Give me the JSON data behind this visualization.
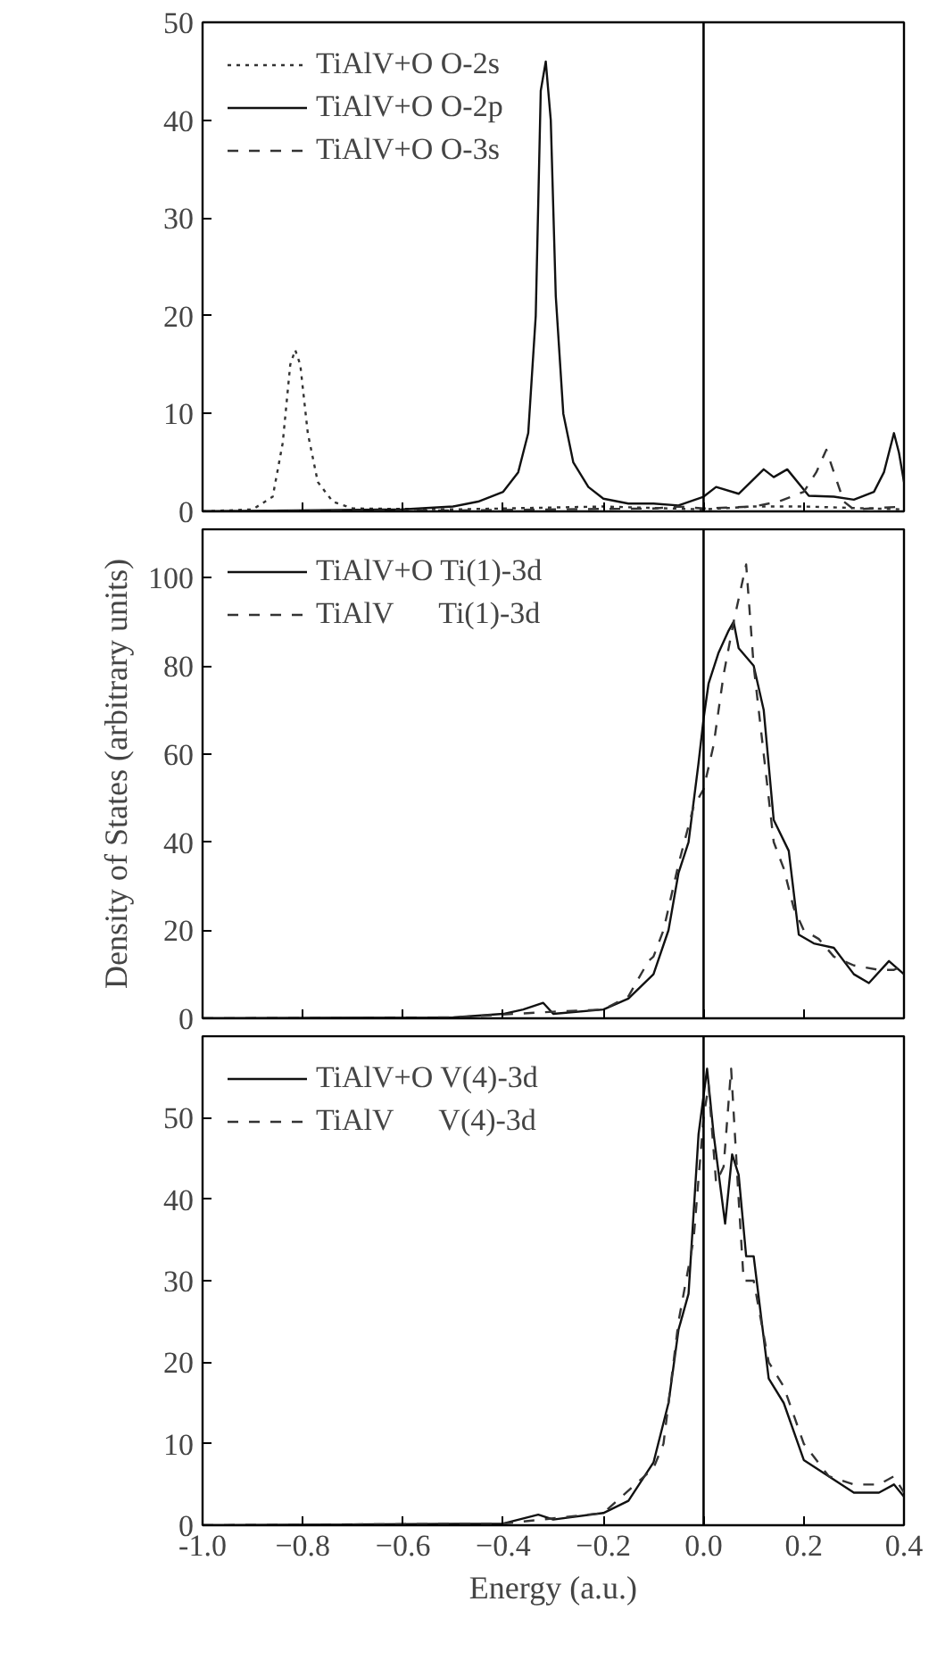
{
  "chart_data": [
    {
      "type": "line",
      "xlim": [
        -1.0,
        0.4
      ],
      "xticks": [
        -1.0,
        -0.8,
        -0.6,
        -0.4,
        -0.2,
        0.0,
        0.2,
        0.4
      ],
      "ylim": [
        0,
        50
      ],
      "yticks": [
        0,
        10,
        20,
        30,
        40,
        50
      ],
      "tick_labels": "y",
      "legend": "top left",
      "grid": false,
      "ref_lines": [
        {
          "axis": "x",
          "value": 0,
          "color": "#000000",
          "line_style": "solid"
        }
      ],
      "series": [
        {
          "name": "TiAlV+O O-2s",
          "color": "#333333",
          "line_style": "dotted",
          "x": [
            -1.0,
            -0.9,
            -0.86,
            -0.84,
            -0.825,
            -0.815,
            -0.805,
            -0.79,
            -0.77,
            -0.74,
            -0.7,
            -0.5,
            -0.2,
            0.0,
            0.1,
            0.2,
            0.4
          ],
          "values": [
            0,
            0.2,
            1.5,
            7,
            15,
            16.5,
            15,
            8,
            3,
            1,
            0.3,
            0.2,
            0.5,
            0.2,
            0.5,
            0.5,
            0.2
          ]
        },
        {
          "name": "TiAlV+O O-2p",
          "color": "#111111",
          "line_style": "solid",
          "x": [
            -1.0,
            -0.6,
            -0.5,
            -0.45,
            -0.4,
            -0.37,
            -0.35,
            -0.335,
            -0.325,
            -0.315,
            -0.305,
            -0.295,
            -0.28,
            -0.26,
            -0.23,
            -0.2,
            -0.15,
            -0.1,
            -0.05,
            0.0,
            0.025,
            0.07,
            0.12,
            0.14,
            0.167,
            0.21,
            0.26,
            0.3,
            0.34,
            0.36,
            0.38,
            0.39,
            0.4
          ],
          "values": [
            0,
            0.2,
            0.5,
            1,
            2,
            4,
            8,
            20,
            43,
            46,
            40,
            22,
            10,
            5,
            2.5,
            1.3,
            0.8,
            0.8,
            0.6,
            1.5,
            2.5,
            1.8,
            4.3,
            3.5,
            4.3,
            1.6,
            1.5,
            1.2,
            2,
            4,
            8,
            6,
            3
          ]
        },
        {
          "name": "TiAlV+O O-3s",
          "color": "#333333",
          "line_style": "dashed",
          "x": [
            -1.0,
            -0.5,
            -0.1,
            -0.05,
            0.0,
            0.1,
            0.15,
            0.2,
            0.225,
            0.245,
            0.26,
            0.28,
            0.3,
            0.4
          ],
          "values": [
            0,
            0.1,
            0.3,
            0.5,
            0.3,
            0.5,
            1,
            2,
            4,
            6.3,
            4,
            1,
            0.2,
            0.5
          ]
        }
      ]
    },
    {
      "type": "line",
      "xlim": [
        -1.0,
        0.4
      ],
      "xticks": [
        -1.0,
        -0.8,
        -0.6,
        -0.4,
        -0.2,
        0.0,
        0.2,
        0.4
      ],
      "ylim": [
        0,
        111
      ],
      "yticks": [
        0,
        20,
        40,
        60,
        80,
        100
      ],
      "tick_labels": "y",
      "legend": "top left",
      "grid": false,
      "ylabel": "Density of States (arbitrary units)",
      "ref_lines": [
        {
          "axis": "x",
          "value": 0,
          "color": "#000000",
          "line_style": "solid"
        }
      ],
      "series": [
        {
          "name": "TiAlV+O Ti(1)-3d",
          "color": "#111111",
          "line_style": "solid",
          "x": [
            -1.0,
            -0.5,
            -0.4,
            -0.36,
            -0.32,
            -0.3,
            -0.2,
            -0.15,
            -0.1,
            -0.07,
            -0.05,
            -0.03,
            -0.01,
            0.0,
            0.01,
            0.03,
            0.05,
            0.06,
            0.07,
            0.1,
            0.12,
            0.14,
            0.17,
            0.19,
            0.22,
            0.26,
            0.3,
            0.33,
            0.37,
            0.4
          ],
          "values": [
            0,
            0.2,
            1,
            2,
            3.5,
            1,
            2,
            4.5,
            10,
            20,
            33,
            40,
            58,
            68,
            76,
            83,
            88,
            90,
            84,
            80,
            70,
            45,
            38,
            19,
            17,
            16,
            10,
            8,
            13,
            10
          ]
        },
        {
          "name": "TiAlV      Ti(1)-3d",
          "color": "#333333",
          "line_style": "dashed",
          "x": [
            -1.0,
            -0.5,
            -0.3,
            -0.2,
            -0.15,
            -0.11,
            -0.1,
            -0.08,
            -0.05,
            -0.02,
            0.0,
            0.02,
            0.04,
            0.06,
            0.085,
            0.1,
            0.12,
            0.14,
            0.16,
            0.18,
            0.2,
            0.23,
            0.26,
            0.3,
            0.35,
            0.38,
            0.4
          ],
          "values": [
            0,
            0.2,
            1.5,
            2,
            5,
            13,
            14,
            20,
            35,
            48,
            52,
            62,
            78,
            90,
            103,
            80,
            60,
            40,
            34,
            25,
            20,
            18,
            14,
            12,
            11,
            11,
            12
          ]
        }
      ]
    },
    {
      "type": "line",
      "xlim": [
        -1.0,
        0.4
      ],
      "xticks": [
        {
          "value": -1.0,
          "label": "-1.0"
        },
        -0.8,
        -0.6,
        -0.4,
        -0.2,
        {
          "value": 0.0,
          "label": "0.0"
        },
        0.2,
        0.4
      ],
      "ylim": [
        0,
        60
      ],
      "yticks": [
        0,
        10,
        20,
        30,
        40,
        50
      ],
      "legend": "top left",
      "grid": false,
      "xlabel": "Energy (a.u.)",
      "ref_lines": [
        {
          "axis": "x",
          "value": 0,
          "color": "#000000",
          "line_style": "solid"
        }
      ],
      "series": [
        {
          "name": "TiAlV+O V(4)-3d",
          "color": "#111111",
          "line_style": "solid",
          "x": [
            -1.0,
            -0.4,
            -0.33,
            -0.3,
            -0.2,
            -0.15,
            -0.1,
            -0.07,
            -0.05,
            -0.03,
            -0.01,
            0.007,
            0.02,
            0.043,
            0.057,
            0.07,
            0.085,
            0.1,
            0.13,
            0.16,
            0.2,
            0.25,
            0.3,
            0.35,
            0.38,
            0.4
          ],
          "values": [
            0,
            0.2,
            1.3,
            0.7,
            1.5,
            3,
            7.7,
            15,
            24,
            28.4,
            48,
            56,
            48,
            37,
            45.5,
            43,
            33,
            33,
            18,
            15,
            8,
            6,
            4,
            4,
            5,
            3.5
          ]
        },
        {
          "name": "TiAlV      V(4)-3d",
          "color": "#333333",
          "line_style": "dashed",
          "x": [
            -1.0,
            -0.4,
            -0.2,
            -0.1,
            -0.08,
            -0.05,
            -0.02,
            0.0,
            0.01,
            0.025,
            0.04,
            0.055,
            0.07,
            0.08,
            0.1,
            0.13,
            0.16,
            0.2,
            0.25,
            0.3,
            0.35,
            0.38,
            0.4
          ],
          "values": [
            0,
            0.2,
            1.5,
            7,
            10,
            25,
            35,
            50,
            54,
            42,
            44,
            56,
            40,
            30,
            30,
            20,
            17,
            10,
            6,
            5,
            5,
            6,
            4
          ]
        }
      ]
    }
  ]
}
